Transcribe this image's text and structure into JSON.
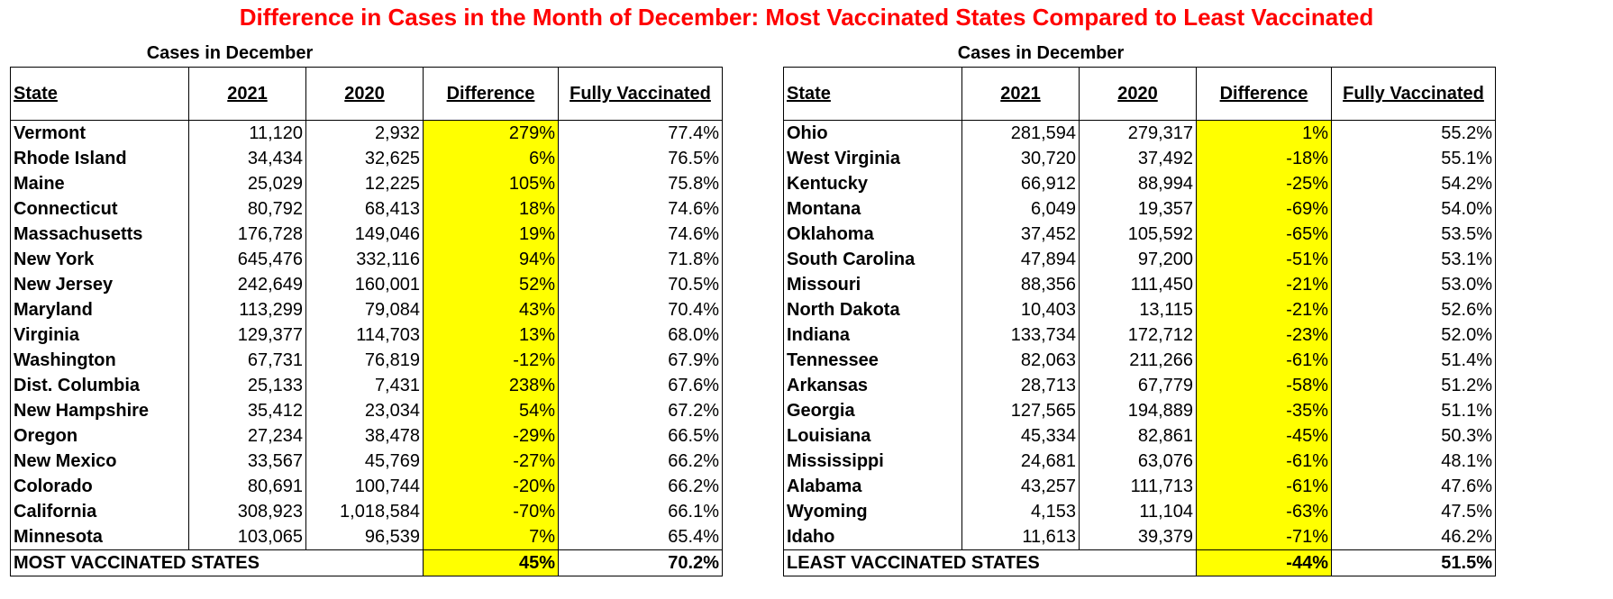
{
  "title": "Difference in Cases in the Month of December: Most Vaccinated States Compared to Least Vaccinated",
  "headers": {
    "state": "State",
    "y2021": "2021",
    "y2020": "2020",
    "difference": "Difference",
    "vaccinated": "Fully Vaccinated"
  },
  "left": {
    "caption": "Cases in December",
    "rows": [
      {
        "state": "Vermont",
        "y2021": "11,120",
        "y2020": "2,932",
        "diff": "279%",
        "vax": "77.4%"
      },
      {
        "state": "Rhode Island",
        "y2021": "34,434",
        "y2020": "32,625",
        "diff": "6%",
        "vax": "76.5%"
      },
      {
        "state": "Maine",
        "y2021": "25,029",
        "y2020": "12,225",
        "diff": "105%",
        "vax": "75.8%"
      },
      {
        "state": "Connecticut",
        "y2021": "80,792",
        "y2020": "68,413",
        "diff": "18%",
        "vax": "74.6%"
      },
      {
        "state": "Massachusetts",
        "y2021": "176,728",
        "y2020": "149,046",
        "diff": "19%",
        "vax": "74.6%"
      },
      {
        "state": "New York",
        "y2021": "645,476",
        "y2020": "332,116",
        "diff": "94%",
        "vax": "71.8%"
      },
      {
        "state": "New Jersey",
        "y2021": "242,649",
        "y2020": "160,001",
        "diff": "52%",
        "vax": "70.5%"
      },
      {
        "state": "Maryland",
        "y2021": "113,299",
        "y2020": "79,084",
        "diff": "43%",
        "vax": "70.4%"
      },
      {
        "state": "Virginia",
        "y2021": "129,377",
        "y2020": "114,703",
        "diff": "13%",
        "vax": "68.0%"
      },
      {
        "state": "Washington",
        "y2021": "67,731",
        "y2020": "76,819",
        "diff": "-12%",
        "vax": "67.9%"
      },
      {
        "state": "Dist. Columbia",
        "y2021": "25,133",
        "y2020": "7,431",
        "diff": "238%",
        "vax": "67.6%"
      },
      {
        "state": "New Hampshire",
        "y2021": "35,412",
        "y2020": "23,034",
        "diff": "54%",
        "vax": "67.2%"
      },
      {
        "state": "Oregon",
        "y2021": "27,234",
        "y2020": "38,478",
        "diff": "-29%",
        "vax": "66.5%"
      },
      {
        "state": "New Mexico",
        "y2021": "33,567",
        "y2020": "45,769",
        "diff": "-27%",
        "vax": "66.2%"
      },
      {
        "state": "Colorado",
        "y2021": "80,691",
        "y2020": "100,744",
        "diff": "-20%",
        "vax": "66.2%"
      },
      {
        "state": "California",
        "y2021": "308,923",
        "y2020": "1,018,584",
        "diff": "-70%",
        "vax": "66.1%"
      },
      {
        "state": "Minnesota",
        "y2021": "103,065",
        "y2020": "96,539",
        "diff": "7%",
        "vax": "65.4%"
      }
    ],
    "total": {
      "label": "MOST VACCINATED STATES",
      "diff": "45%",
      "vax": "70.2%"
    }
  },
  "right": {
    "caption": "Cases in December",
    "rows": [
      {
        "state": "Ohio",
        "y2021": "281,594",
        "y2020": "279,317",
        "diff": "1%",
        "vax": "55.2%"
      },
      {
        "state": "West Virginia",
        "y2021": "30,720",
        "y2020": "37,492",
        "diff": "-18%",
        "vax": "55.1%"
      },
      {
        "state": "Kentucky",
        "y2021": "66,912",
        "y2020": "88,994",
        "diff": "-25%",
        "vax": "54.2%"
      },
      {
        "state": "Montana",
        "y2021": "6,049",
        "y2020": "19,357",
        "diff": "-69%",
        "vax": "54.0%"
      },
      {
        "state": "Oklahoma",
        "y2021": "37,452",
        "y2020": "105,592",
        "diff": "-65%",
        "vax": "53.5%"
      },
      {
        "state": "South Carolina",
        "y2021": "47,894",
        "y2020": "97,200",
        "diff": "-51%",
        "vax": "53.1%"
      },
      {
        "state": "Missouri",
        "y2021": "88,356",
        "y2020": "111,450",
        "diff": "-21%",
        "vax": "53.0%"
      },
      {
        "state": "North Dakota",
        "y2021": "10,403",
        "y2020": "13,115",
        "diff": "-21%",
        "vax": "52.6%"
      },
      {
        "state": "Indiana",
        "y2021": "133,734",
        "y2020": "172,712",
        "diff": "-23%",
        "vax": "52.0%"
      },
      {
        "state": "Tennessee",
        "y2021": "82,063",
        "y2020": "211,266",
        "diff": "-61%",
        "vax": "51.4%"
      },
      {
        "state": "Arkansas",
        "y2021": "28,713",
        "y2020": "67,779",
        "diff": "-58%",
        "vax": "51.2%"
      },
      {
        "state": "Georgia",
        "y2021": "127,565",
        "y2020": "194,889",
        "diff": "-35%",
        "vax": "51.1%"
      },
      {
        "state": "Louisiana",
        "y2021": "45,334",
        "y2020": "82,861",
        "diff": "-45%",
        "vax": "50.3%"
      },
      {
        "state": "Mississippi",
        "y2021": "24,681",
        "y2020": "63,076",
        "diff": "-61%",
        "vax": "48.1%"
      },
      {
        "state": "Alabama",
        "y2021": "43,257",
        "y2020": "111,713",
        "diff": "-61%",
        "vax": "47.6%"
      },
      {
        "state": "Wyoming",
        "y2021": "4,153",
        "y2020": "11,104",
        "diff": "-63%",
        "vax": "47.5%"
      },
      {
        "state": "Idaho",
        "y2021": "11,613",
        "y2020": "39,379",
        "diff": "-71%",
        "vax": "46.2%"
      }
    ],
    "total": {
      "label": "LEAST VACCINATED STATES",
      "diff": "-44%",
      "vax": "51.5%"
    }
  }
}
